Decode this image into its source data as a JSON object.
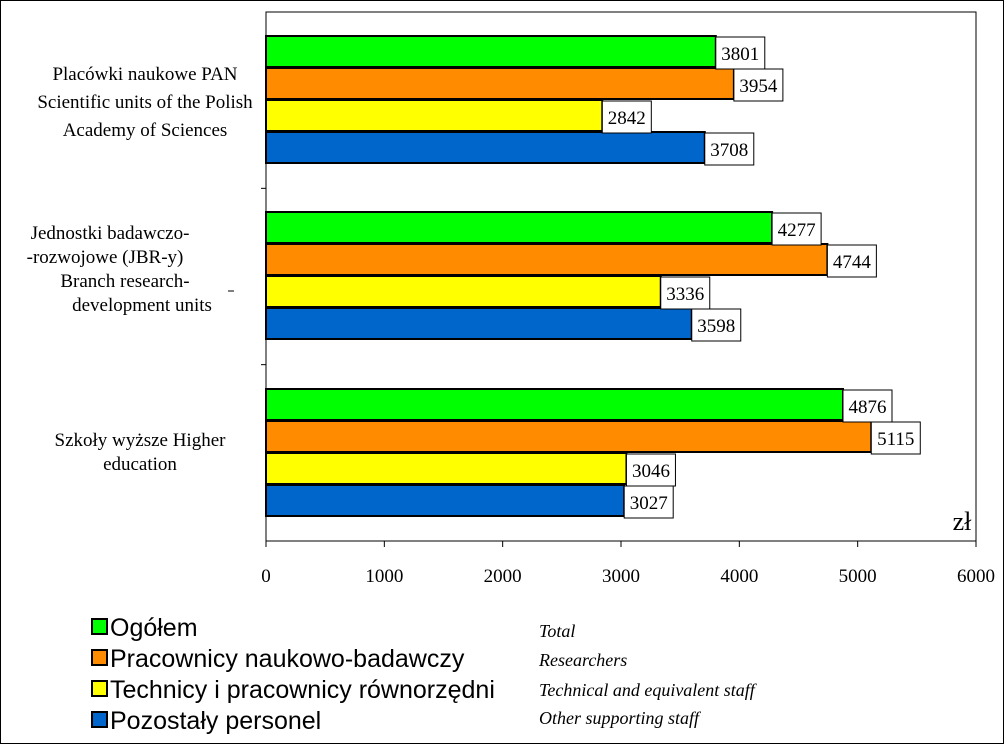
{
  "chart_data": {
    "type": "bar",
    "orientation": "horizontal",
    "unit": "zł",
    "xlim": [
      0,
      6000
    ],
    "xticks": [
      0,
      1000,
      2000,
      3000,
      4000,
      5000,
      6000
    ],
    "categories": [
      [
        "Placówki naukowe PAN",
        "Scientific units of the Polish",
        "Academy of Sciences"
      ],
      [
        "Jednostki badawczo-",
        "-rozwojowe (JBR-y)",
        "Branch research-",
        "development units"
      ],
      [
        "Szkoły wyższe     Higher",
        "education"
      ]
    ],
    "series": [
      {
        "name": "Ogółem",
        "name_en": "Total",
        "color": "#00ff00",
        "values": [
          3801,
          4277,
          4876
        ]
      },
      {
        "name": "Pracownicy naukowo-badawczy",
        "name_en": "Researchers",
        "color": "#ff8c00",
        "values": [
          3954,
          4744,
          5115
        ]
      },
      {
        "name": "Technicy i pracownicy równorzędni",
        "name_en": "Technical and equivalent staff",
        "color": "#ffff00",
        "values": [
          2842,
          3336,
          3046
        ]
      },
      {
        "name": "Pozostały personel",
        "name_en": "Other supporting staff",
        "color": "#0066cc",
        "values": [
          3708,
          3598,
          3027
        ]
      }
    ],
    "grid": false,
    "legend": "bottom-left"
  }
}
